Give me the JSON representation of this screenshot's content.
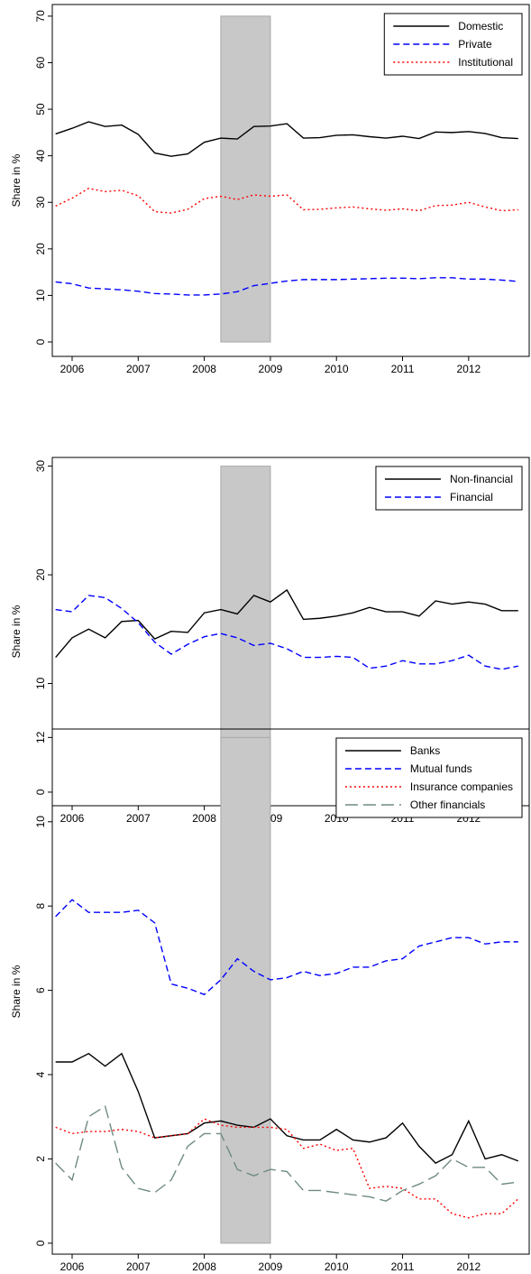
{
  "chart_data": [
    {
      "type": "line",
      "ylabel": "Share in %",
      "x": [
        2005.75,
        2006,
        2006.25,
        2006.5,
        2006.75,
        2007,
        2007.25,
        2007.5,
        2007.75,
        2008,
        2008.25,
        2008.5,
        2008.75,
        2009,
        2009.25,
        2009.5,
        2009.75,
        2010,
        2010.25,
        2010.5,
        2010.75,
        2011,
        2011.25,
        2011.5,
        2011.75,
        2012,
        2012.25,
        2012.5,
        2012.75
      ],
      "xlim": [
        2005.7,
        2012.93
      ],
      "xticks": [
        2006,
        2007,
        2008,
        2009,
        2010,
        2011,
        2012
      ],
      "ylim": [
        -3.1,
        72.5
      ],
      "yticks": [
        0,
        10,
        20,
        30,
        40,
        50,
        60,
        70
      ],
      "shaded_x": [
        2008.25,
        2009
      ],
      "legend": "top-right",
      "series": [
        {
          "name": "Domestic",
          "color": "#000000",
          "dash": "solid",
          "values": [
            44.7,
            45.9,
            47.3,
            46.3,
            46.6,
            44.6,
            40.6,
            39.9,
            40.4,
            42.9,
            43.8,
            43.6,
            46.3,
            46.4,
            46.9,
            43.8,
            43.9,
            44.4,
            44.5,
            44.1,
            43.8,
            44.2,
            43.7,
            45.1,
            45.0,
            45.2,
            44.8,
            43.9,
            43.7
          ]
        },
        {
          "name": "Private",
          "color": "#0000ff",
          "dash": "dashed",
          "values": [
            12.9,
            12.5,
            11.6,
            11.4,
            11.2,
            10.9,
            10.4,
            10.3,
            10.1,
            10.1,
            10.3,
            10.8,
            12.1,
            12.6,
            13.1,
            13.4,
            13.4,
            13.4,
            13.5,
            13.6,
            13.7,
            13.7,
            13.6,
            13.8,
            13.8,
            13.5,
            13.5,
            13.3,
            13.0
          ]
        },
        {
          "name": "Institutional",
          "color": "#ff0000",
          "dash": "dotted",
          "values": [
            29.2,
            30.9,
            33.0,
            32.3,
            32.6,
            31.4,
            28.0,
            27.7,
            28.5,
            30.8,
            31.3,
            30.6,
            31.6,
            31.3,
            31.6,
            28.4,
            28.5,
            28.8,
            29.0,
            28.6,
            28.3,
            28.6,
            28.2,
            29.3,
            29.4,
            30.0,
            29.0,
            28.2,
            28.4
          ]
        }
      ]
    },
    {
      "type": "line",
      "ylabel": "Share in %",
      "x": [
        2005.75,
        2006,
        2006.25,
        2006.5,
        2006.75,
        2007,
        2007.25,
        2007.5,
        2007.75,
        2008,
        2008.25,
        2008.5,
        2008.75,
        2009,
        2009.25,
        2009.5,
        2009.75,
        2010,
        2010.25,
        2010.5,
        2010.75,
        2011,
        2011.25,
        2011.5,
        2011.75,
        2012,
        2012.25,
        2012.5,
        2012.75
      ],
      "xlim": [
        2005.7,
        2012.93
      ],
      "xticks": [
        2006,
        2007,
        2008,
        2009,
        2010,
        2011,
        2012
      ],
      "ylim": [
        -1.25,
        30.8
      ],
      "yticks": [
        0,
        10,
        20,
        30
      ],
      "shaded_x": [
        2008.25,
        2009
      ],
      "legend": "top-right",
      "series": [
        {
          "name": "Non-financial",
          "color": "#000000",
          "dash": "solid",
          "values": [
            12.4,
            14.2,
            15.0,
            14.2,
            15.7,
            15.8,
            14.1,
            14.8,
            14.7,
            16.5,
            16.8,
            16.4,
            18.1,
            17.5,
            18.6,
            15.9,
            16.0,
            16.2,
            16.5,
            17.0,
            16.6,
            16.6,
            16.2,
            17.6,
            17.3,
            17.5,
            17.3,
            16.7,
            16.7
          ]
        },
        {
          "name": "Financial",
          "color": "#0000ff",
          "dash": "dashed",
          "values": [
            16.8,
            16.6,
            18.1,
            17.9,
            16.9,
            15.6,
            13.8,
            12.7,
            13.6,
            14.3,
            14.6,
            14.2,
            13.5,
            13.7,
            13.2,
            12.4,
            12.4,
            12.5,
            12.4,
            11.4,
            11.6,
            12.1,
            11.8,
            11.8,
            12.1,
            12.6,
            11.6,
            11.3,
            11.6
          ]
        }
      ]
    },
    {
      "type": "line",
      "ylabel": "Share in %",
      "x": [
        2005.75,
        2006,
        2006.25,
        2006.5,
        2006.75,
        2007,
        2007.25,
        2007.5,
        2007.75,
        2008,
        2008.25,
        2008.5,
        2008.75,
        2009,
        2009.25,
        2009.5,
        2009.75,
        2010,
        2010.25,
        2010.5,
        2010.75,
        2011,
        2011.25,
        2011.5,
        2011.75,
        2012,
        2012.25,
        2012.5,
        2012.75
      ],
      "xlim": [
        2005.7,
        2012.93
      ],
      "xticks": [
        2006,
        2007,
        2008,
        2009,
        2010,
        2011,
        2012
      ],
      "ylim": [
        -0.26,
        12.2
      ],
      "yticks": [
        0,
        2,
        4,
        6,
        8,
        10,
        12
      ],
      "shaded_x": [
        2008.25,
        2009
      ],
      "legend": "top-right",
      "series": [
        {
          "name": "Banks",
          "color": "#000000",
          "dash": "solid",
          "values": [
            4.3,
            4.3,
            4.5,
            4.2,
            4.5,
            3.6,
            2.5,
            2.55,
            2.6,
            2.85,
            2.9,
            2.8,
            2.75,
            2.95,
            2.55,
            2.45,
            2.45,
            2.7,
            2.45,
            2.4,
            2.5,
            2.85,
            2.3,
            1.9,
            2.1,
            2.9,
            2.0,
            2.1,
            1.95
          ]
        },
        {
          "name": "Mutual funds",
          "color": "#0000ff",
          "dash": "dashed",
          "values": [
            7.75,
            8.15,
            7.85,
            7.85,
            7.85,
            7.9,
            7.6,
            6.15,
            6.05,
            5.9,
            6.25,
            6.75,
            6.45,
            6.25,
            6.3,
            6.45,
            6.35,
            6.4,
            6.55,
            6.55,
            6.7,
            6.75,
            7.05,
            7.15,
            7.25,
            7.25,
            7.1,
            7.15,
            7.15
          ]
        },
        {
          "name": "Insurance companies",
          "color": "#ff0000",
          "dash": "dotted",
          "values": [
            2.75,
            2.6,
            2.65,
            2.65,
            2.7,
            2.65,
            2.5,
            2.55,
            2.6,
            2.95,
            2.8,
            2.75,
            2.75,
            2.75,
            2.7,
            2.25,
            2.35,
            2.2,
            2.25,
            1.3,
            1.35,
            1.3,
            1.05,
            1.05,
            0.7,
            0.6,
            0.7,
            0.7,
            1.05
          ]
        },
        {
          "name": "Other financials",
          "color": "#6e8b7d",
          "dash": "longdash",
          "values": [
            1.9,
            1.5,
            3.0,
            3.25,
            1.8,
            1.3,
            1.2,
            1.5,
            2.3,
            2.6,
            2.6,
            1.75,
            1.6,
            1.75,
            1.7,
            1.25,
            1.25,
            1.2,
            1.15,
            1.1,
            1.0,
            1.25,
            1.4,
            1.6,
            2.0,
            1.8,
            1.8,
            1.4,
            1.45
          ]
        }
      ]
    }
  ]
}
